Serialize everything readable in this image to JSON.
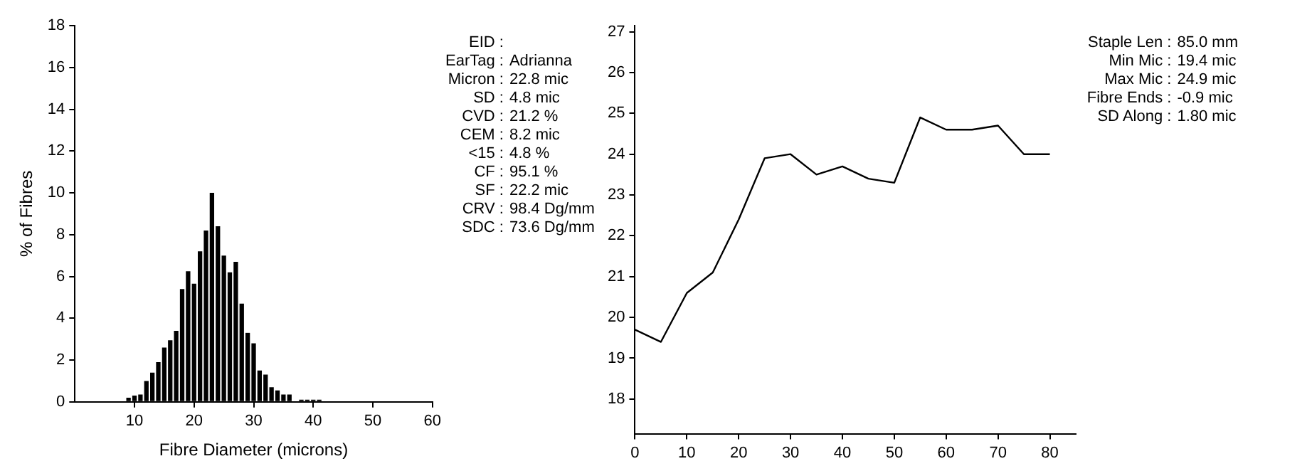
{
  "chart_data": [
    {
      "type": "histogram",
      "xlabel": "Fibre Diameter (microns)",
      "ylabel": "% of Fibres",
      "color": "#000000",
      "bins": [
        8.5,
        9.5,
        10.5,
        11.5,
        12.5,
        13.5,
        14.5,
        15.5,
        16.5,
        17.5,
        18.5,
        19.5,
        20.5,
        21.5,
        22.5,
        23.5,
        24.5,
        25.5,
        26.5,
        27.5,
        28.5,
        29.5,
        30.5,
        31.5,
        32.5,
        33.5,
        34.5,
        35.5,
        36.5,
        37.5,
        38.5,
        39.5,
        40.5,
        41.5
      ],
      "values": [
        0.2,
        0.3,
        0.35,
        1.0,
        1.4,
        1.9,
        2.6,
        2.95,
        3.4,
        5.4,
        6.25,
        5.65,
        7.2,
        8.2,
        10.0,
        8.4,
        7.0,
        6.2,
        6.7,
        4.7,
        3.3,
        2.8,
        1.5,
        1.3,
        0.7,
        0.55,
        0.35,
        0.35,
        0,
        0.1,
        0.1,
        0.1,
        0.1
      ],
      "xlim": [
        0,
        60
      ],
      "xticks": [
        10,
        20,
        30,
        40,
        50,
        60
      ],
      "ylim": [
        0,
        18
      ],
      "yticks": [
        0,
        2,
        4,
        6,
        8,
        10,
        12,
        14,
        16,
        18
      ],
      "annotations": [
        "EID :",
        "EarTag : Adrianna",
        "Micron : 22.8 mic",
        "SD : 4.8 mic",
        "CVD : 21.2 %",
        "CEM : 8.2 mic",
        "<15 : 4.8 %",
        "CF : 95.1 %",
        "SF : 22.2 mic",
        "CRV : 98.4 Dg/mm",
        "SDC : 73.6 Dg/mm"
      ]
    },
    {
      "type": "line",
      "color": "#000000",
      "marker": "none",
      "x": [
        0,
        5,
        10,
        15,
        20,
        25,
        30,
        35,
        40,
        45,
        50,
        55,
        60,
        65,
        70,
        75,
        80
      ],
      "values": [
        19.7,
        19.4,
        20.6,
        21.1,
        22.4,
        23.9,
        24.0,
        23.5,
        23.7,
        23.4,
        23.3,
        24.9,
        24.6,
        24.6,
        24.7,
        24.0,
        24.0
      ],
      "xlim": [
        0,
        85
      ],
      "xticks": [
        0,
        10,
        20,
        30,
        40,
        50,
        60,
        70,
        80
      ],
      "ylim": [
        17.15,
        27.15
      ],
      "yticks": [
        18,
        19,
        20,
        21,
        22,
        23,
        24,
        25,
        26,
        27
      ],
      "annotations": [
        "Staple Len : 85.0 mm",
        "Min Mic : 19.4 mic",
        "Max Mic : 24.9 mic",
        "Fibre Ends : -0.9 mic",
        "SD Along : 1.80 mic"
      ]
    }
  ]
}
